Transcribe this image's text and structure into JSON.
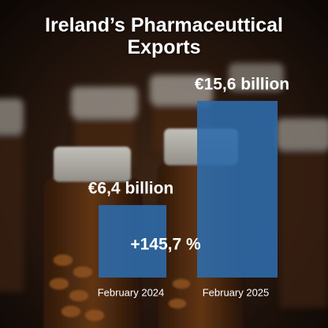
{
  "chart_data": {
    "type": "bar",
    "title": "Ireland’s Pharmaceuttical Exports",
    "categories": [
      "February 2024",
      "February 2025"
    ],
    "values": [
      6.4,
      15.6
    ],
    "value_labels": [
      "€6,4 billion",
      "€15,6 billion"
    ],
    "annotation": "+145,7 %",
    "color": "#2e6aa8"
  }
}
